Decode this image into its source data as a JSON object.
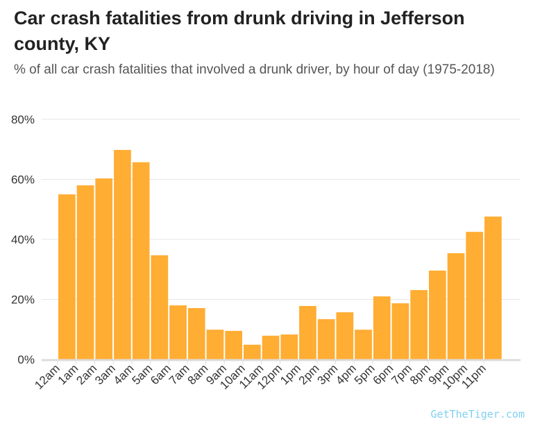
{
  "chart_data": {
    "type": "bar",
    "title": "Car crash fatalities from drunk driving in Jefferson county, KY",
    "subtitle": "% of all car crash fatalities that involved a drunk driver, by hour of day (1975-2018)",
    "categories": [
      "12am",
      "1am",
      "2am",
      "3am",
      "4am",
      "5am",
      "6am",
      "7am",
      "8am",
      "9am",
      "10am",
      "11am",
      "12pm",
      "1pm",
      "2pm",
      "3pm",
      "4pm",
      "5pm",
      "6pm",
      "7pm",
      "8pm",
      "9pm",
      "10pm",
      "11pm"
    ],
    "values": [
      55.0,
      58.0,
      60.3,
      69.8,
      65.7,
      34.7,
      18.0,
      17.1,
      9.9,
      9.5,
      4.9,
      7.9,
      8.3,
      17.8,
      13.4,
      15.7,
      9.9,
      21.0,
      18.7,
      23.1,
      29.6,
      35.4,
      42.5,
      47.6
    ],
    "ylim": [
      0,
      80
    ],
    "yticks": [
      "0%",
      "20%",
      "40%",
      "60%",
      "80%"
    ],
    "ytick_values": [
      0,
      20,
      40,
      60,
      80
    ],
    "grid": true,
    "bar_color": "#FFAD33",
    "xlabel": "",
    "ylabel": ""
  },
  "watermark": "GetTheTiger.com"
}
